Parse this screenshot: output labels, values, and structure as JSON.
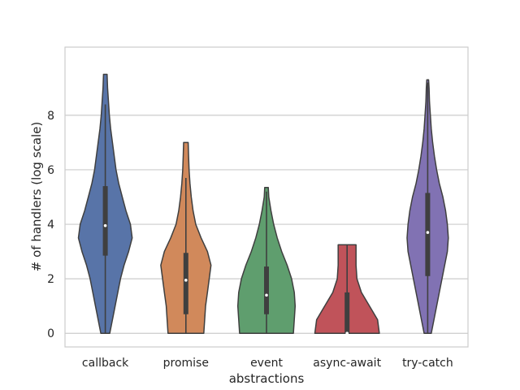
{
  "chart_data": {
    "type": "violin",
    "title": "",
    "xlabel": "abstractions",
    "ylabel": "# of handlers (log scale)",
    "ylim": [
      -0.5,
      10.5
    ],
    "yticks": [
      0,
      2,
      4,
      6,
      8
    ],
    "grid": true,
    "categories": [
      "callback",
      "promise",
      "event",
      "async-await",
      "try-catch"
    ],
    "series": [
      {
        "category": "callback",
        "color": "#5874a8",
        "min": 0,
        "max": 9.5,
        "q1": 2.85,
        "median": 3.95,
        "q3": 5.4,
        "whisker_low": 0,
        "whisker_high": 8.4,
        "density": [
          [
            0,
            0.05
          ],
          [
            0.5,
            0.08
          ],
          [
            1,
            0.11
          ],
          [
            1.5,
            0.14
          ],
          [
            2,
            0.17
          ],
          [
            2.5,
            0.21
          ],
          [
            3,
            0.26
          ],
          [
            3.5,
            0.3
          ],
          [
            4,
            0.28
          ],
          [
            4.5,
            0.23
          ],
          [
            5,
            0.19
          ],
          [
            5.5,
            0.15
          ],
          [
            6,
            0.12
          ],
          [
            6.5,
            0.1
          ],
          [
            7,
            0.08
          ],
          [
            7.5,
            0.06
          ],
          [
            8,
            0.045
          ],
          [
            8.5,
            0.035
          ],
          [
            9,
            0.025
          ],
          [
            9.5,
            0.02
          ]
        ]
      },
      {
        "category": "promise",
        "color": "#d1895b",
        "min": 0,
        "max": 7.0,
        "q1": 0.7,
        "median": 1.95,
        "q3": 2.95,
        "whisker_low": 0,
        "whisker_high": 5.7,
        "density": [
          [
            0,
            0.2
          ],
          [
            0.5,
            0.21
          ],
          [
            1,
            0.22
          ],
          [
            1.5,
            0.24
          ],
          [
            2,
            0.26
          ],
          [
            2.5,
            0.28
          ],
          [
            3,
            0.24
          ],
          [
            3.5,
            0.17
          ],
          [
            4,
            0.11
          ],
          [
            4.5,
            0.08
          ],
          [
            5,
            0.06
          ],
          [
            5.5,
            0.045
          ],
          [
            6,
            0.035
          ],
          [
            6.5,
            0.03
          ],
          [
            7,
            0.025
          ]
        ]
      },
      {
        "category": "event",
        "color": "#5f9e6e",
        "min": 0,
        "max": 5.35,
        "q1": 0.7,
        "median": 1.4,
        "q3": 2.45,
        "whisker_low": 0,
        "whisker_high": 5.2,
        "density": [
          [
            0,
            0.3
          ],
          [
            0.5,
            0.31
          ],
          [
            1,
            0.32
          ],
          [
            1.5,
            0.31
          ],
          [
            2,
            0.28
          ],
          [
            2.5,
            0.23
          ],
          [
            3,
            0.17
          ],
          [
            3.5,
            0.12
          ],
          [
            4,
            0.08
          ],
          [
            4.5,
            0.05
          ],
          [
            5,
            0.025
          ],
          [
            5.35,
            0.02
          ]
        ]
      },
      {
        "category": "async-await",
        "color": "#c0535a",
        "min": 0,
        "max": 3.25,
        "q1": 0,
        "median": 0,
        "q3": 1.5,
        "whisker_low": 0,
        "whisker_high": 3.25,
        "density": [
          [
            0,
            0.36
          ],
          [
            0.5,
            0.34
          ],
          [
            1,
            0.25
          ],
          [
            1.5,
            0.16
          ],
          [
            2,
            0.11
          ],
          [
            2.5,
            0.1
          ],
          [
            3,
            0.1
          ],
          [
            3.25,
            0.1
          ]
        ]
      },
      {
        "category": "try-catch",
        "color": "#8172b3",
        "min": 0,
        "max": 9.3,
        "q1": 2.1,
        "median": 3.7,
        "q3": 5.15,
        "whisker_low": 0,
        "whisker_high": 9.2,
        "density": [
          [
            0,
            0.04
          ],
          [
            0.5,
            0.07
          ],
          [
            1,
            0.1
          ],
          [
            1.5,
            0.13
          ],
          [
            2,
            0.16
          ],
          [
            2.5,
            0.19
          ],
          [
            3,
            0.22
          ],
          [
            3.5,
            0.23
          ],
          [
            4,
            0.22
          ],
          [
            4.5,
            0.2
          ],
          [
            5,
            0.17
          ],
          [
            5.5,
            0.13
          ],
          [
            6,
            0.1
          ],
          [
            6.5,
            0.075
          ],
          [
            7,
            0.055
          ],
          [
            7.5,
            0.04
          ],
          [
            8,
            0.03
          ],
          [
            8.5,
            0.02
          ],
          [
            9,
            0.015
          ],
          [
            9.3,
            0.01
          ]
        ]
      }
    ]
  }
}
